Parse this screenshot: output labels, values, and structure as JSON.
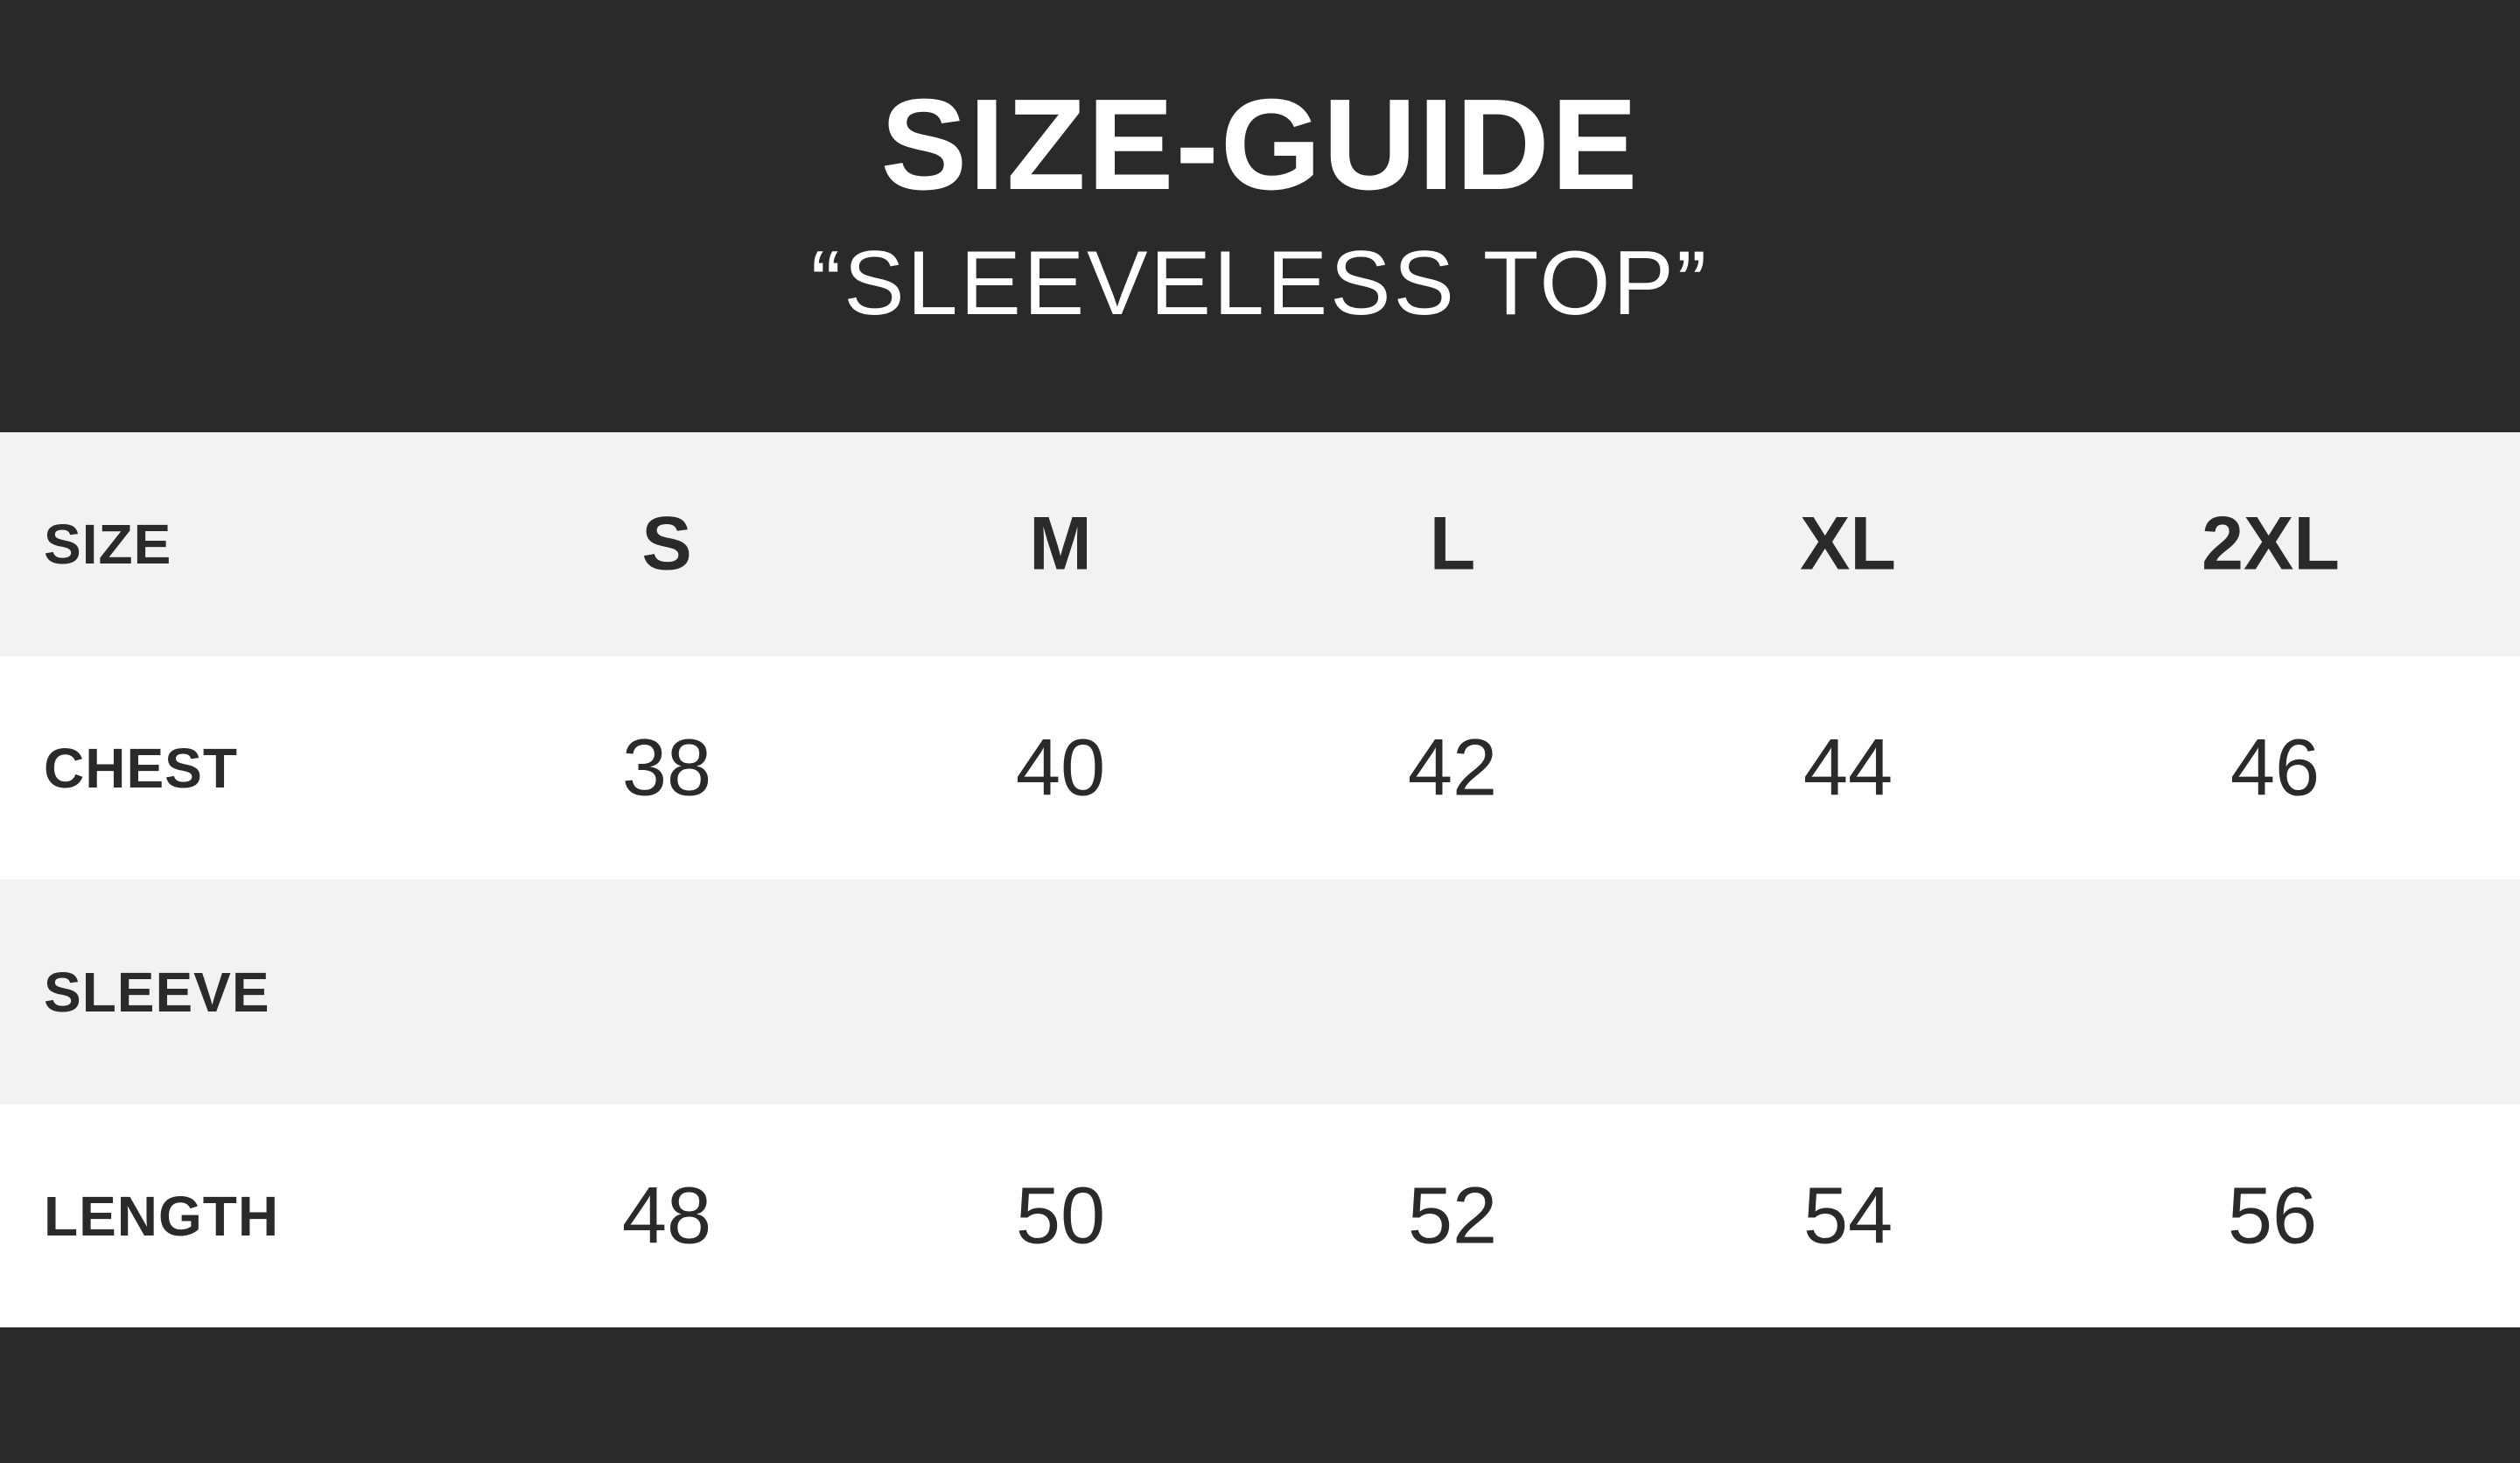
{
  "header": {
    "title": "SIZE-GUIDE",
    "subtitle": "“SLEEVELESS TOP”"
  },
  "colors": {
    "dark": "#2a2a2a",
    "row_alt": "#f2f2f2",
    "row_plain": "#ffffff"
  },
  "table": {
    "columns": [
      "S",
      "M",
      "L",
      "XL",
      "2XL"
    ],
    "header_label": "SIZE",
    "rows": [
      {
        "label": "CHEST",
        "values": [
          "38",
          "40",
          "42",
          "44",
          "46"
        ]
      },
      {
        "label": "SLEEVE",
        "values": [
          "",
          "",
          "",
          "",
          ""
        ]
      },
      {
        "label": "LENGTH",
        "values": [
          "48",
          "50",
          "52",
          "54",
          "56"
        ]
      }
    ]
  }
}
